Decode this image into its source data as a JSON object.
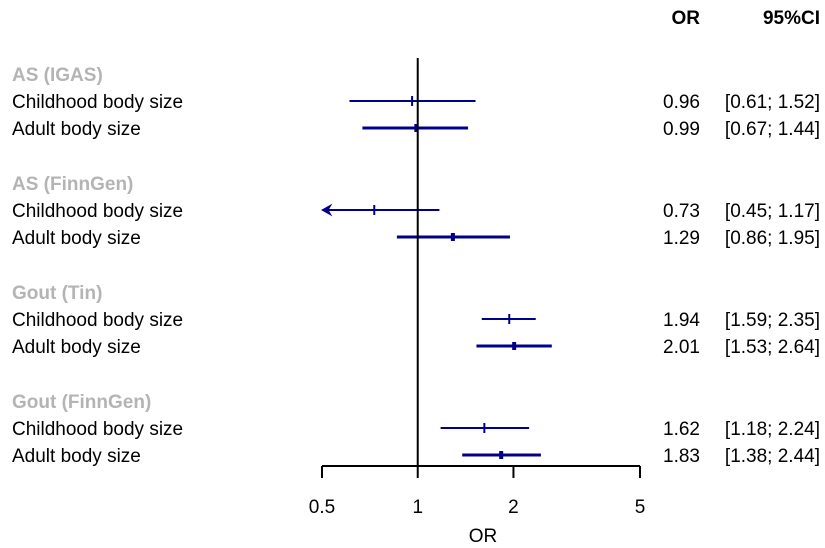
{
  "chart_data": {
    "type": "forest",
    "xlabel": "OR",
    "x_scale": "log",
    "xlim": [
      0.5,
      5
    ],
    "reference_line": 1,
    "x_ticks": [
      0.5,
      1,
      2,
      5
    ],
    "x_tick_labels": [
      "0.5",
      "1",
      "2",
      "5"
    ],
    "columns": {
      "or": "OR",
      "ci": "95%CI"
    },
    "marker_color": "#00008b",
    "group_label_color": "#b4b4b4",
    "groups": [
      {
        "name": "AS (IGAS)",
        "rows": [
          {
            "label": "Childhood body size",
            "or": 0.96,
            "lower": 0.61,
            "upper": 1.52,
            "or_text": "0.96",
            "ci_text": "[0.61; 1.52]"
          },
          {
            "label": "Adult body size",
            "or": 0.99,
            "lower": 0.67,
            "upper": 1.44,
            "or_text": "0.99",
            "ci_text": "[0.67; 1.44]"
          }
        ]
      },
      {
        "name": "AS (FinnGen)",
        "rows": [
          {
            "label": "Childhood body size",
            "or": 0.73,
            "lower": 0.45,
            "upper": 1.17,
            "or_text": "0.73",
            "ci_text": "[0.45; 1.17]"
          },
          {
            "label": "Adult body size",
            "or": 1.29,
            "lower": 0.86,
            "upper": 1.95,
            "or_text": "1.29",
            "ci_text": "[0.86; 1.95]"
          }
        ]
      },
      {
        "name": "Gout (Tin)",
        "rows": [
          {
            "label": "Childhood body size",
            "or": 1.94,
            "lower": 1.59,
            "upper": 2.35,
            "or_text": "1.94",
            "ci_text": "[1.59; 2.35]"
          },
          {
            "label": "Adult body size",
            "or": 2.01,
            "lower": 1.53,
            "upper": 2.64,
            "or_text": "2.01",
            "ci_text": "[1.53; 2.64]"
          }
        ]
      },
      {
        "name": "Gout (FinnGen)",
        "rows": [
          {
            "label": "Childhood body size",
            "or": 1.62,
            "lower": 1.18,
            "upper": 2.24,
            "or_text": "1.62",
            "ci_text": "[1.18; 2.24]"
          },
          {
            "label": "Adult body size",
            "or": 1.83,
            "lower": 1.38,
            "upper": 2.44,
            "or_text": "1.83",
            "ci_text": "[1.38; 2.44]"
          }
        ]
      }
    ]
  }
}
